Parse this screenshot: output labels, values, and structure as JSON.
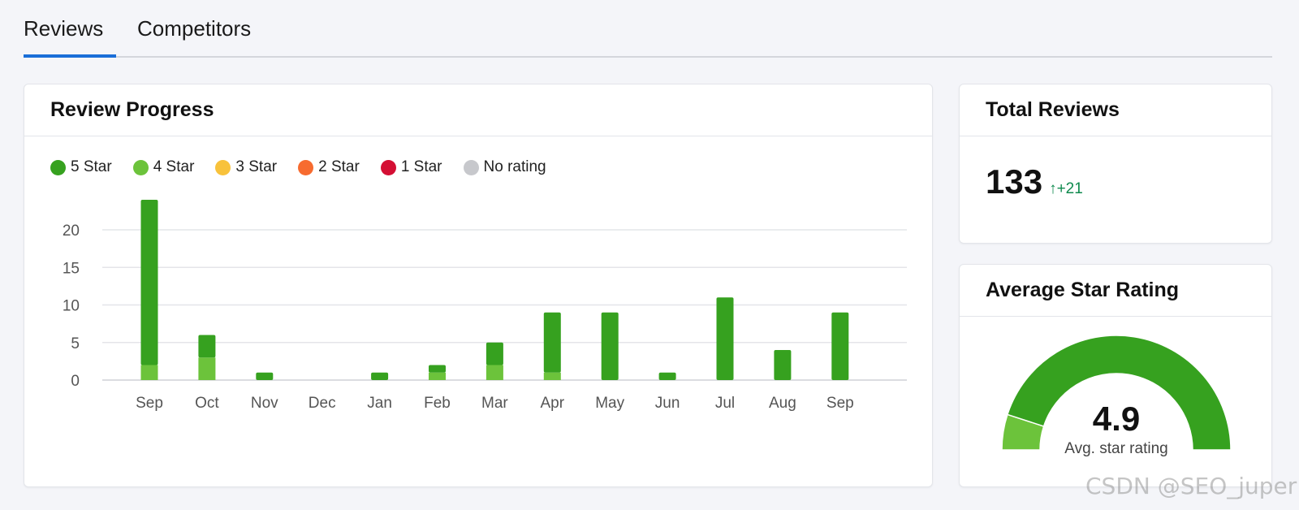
{
  "tabs": [
    {
      "label": "Reviews",
      "active": true
    },
    {
      "label": "Competitors",
      "active": false
    }
  ],
  "progress": {
    "title": "Review Progress",
    "legend": [
      {
        "label": "5 Star",
        "color": "#36a11f"
      },
      {
        "label": "4 Star",
        "color": "#6cc33b"
      },
      {
        "label": "3 Star",
        "color": "#f8c23b"
      },
      {
        "label": "2 Star",
        "color": "#f76b2f"
      },
      {
        "label": "1 Star",
        "color": "#d40f34"
      },
      {
        "label": "No rating",
        "color": "#c7c8cc"
      }
    ]
  },
  "chart_data": {
    "type": "bar",
    "stacked": true,
    "categories": [
      "Sep",
      "Oct",
      "Nov",
      "Dec",
      "Jan",
      "Feb",
      "Mar",
      "Apr",
      "May",
      "Jun",
      "Jul",
      "Aug",
      "Sep"
    ],
    "series": [
      {
        "name": "4 Star",
        "color": "#6cc33b",
        "values": [
          2,
          3,
          0,
          0,
          0,
          1,
          2,
          1,
          0,
          0,
          0,
          0,
          0
        ]
      },
      {
        "name": "5 Star",
        "color": "#36a11f",
        "values": [
          22,
          3,
          1,
          0,
          1,
          1,
          3,
          8,
          9,
          1,
          11,
          4,
          9
        ]
      }
    ],
    "yticks": [
      0,
      5,
      10,
      15,
      20
    ],
    "ylim": [
      0,
      24
    ],
    "grid": true,
    "legend_position": "top-left"
  },
  "total": {
    "title": "Total Reviews",
    "value": "133",
    "delta": "↑+21"
  },
  "average": {
    "title": "Average Star Rating",
    "value": "4.9",
    "label": "Avg. star rating",
    "gauge_fraction_5star": 0.9,
    "gauge_fraction_4star": 0.1
  },
  "watermark": "CSDN @SEO_juper"
}
